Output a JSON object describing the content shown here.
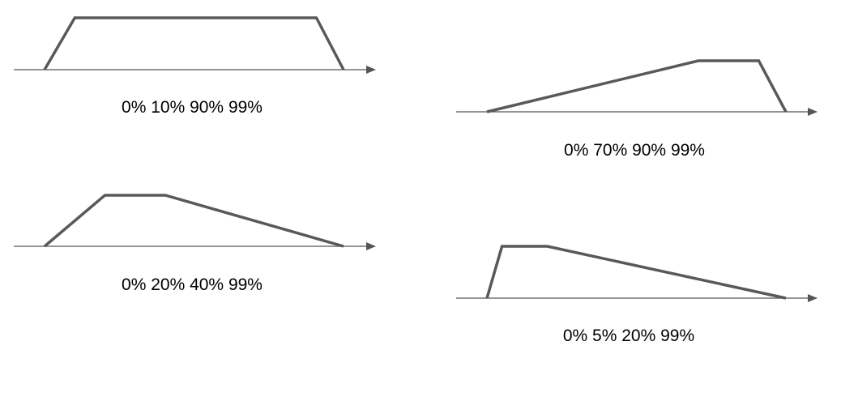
{
  "colors": {
    "axis": "#555555",
    "shape": "#595959",
    "caption": "#000000"
  },
  "diagrams": [
    {
      "caption": "0% 10% 90% 99%",
      "points": [
        0,
        10,
        90,
        99
      ]
    },
    {
      "caption": "0% 70% 90% 99%",
      "points": [
        0,
        70,
        90,
        99
      ]
    },
    {
      "caption": "0% 20% 40% 99%",
      "points": [
        0,
        20,
        40,
        99
      ]
    },
    {
      "caption": "0% 5% 20% 99%",
      "points": [
        0,
        5,
        20,
        99
      ]
    }
  ]
}
